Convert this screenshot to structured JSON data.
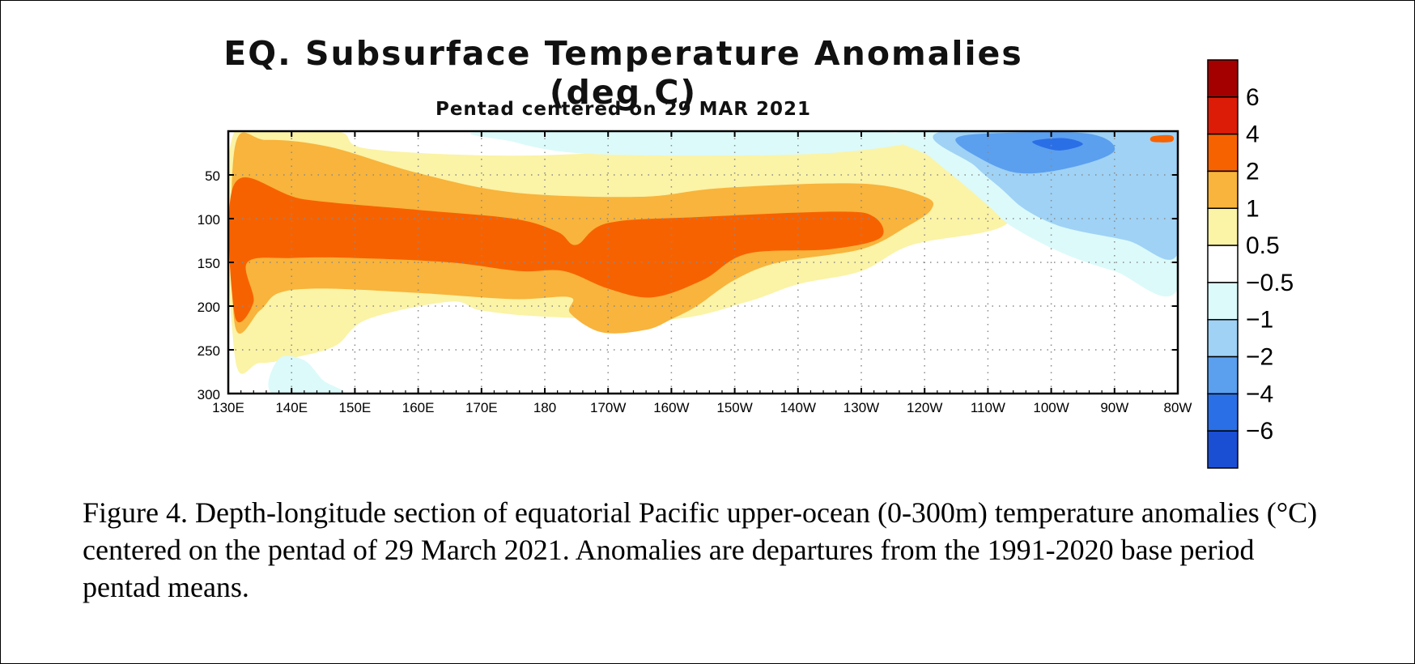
{
  "chart_data": {
    "type": "heatmap",
    "title": "EQ. Subsurface Temperature Anomalies (deg C)",
    "subtitle": "Pentad centered on 29 MAR 2021",
    "x_ticks": [
      "130E",
      "140E",
      "150E",
      "160E",
      "170E",
      "180",
      "170W",
      "160W",
      "150W",
      "140W",
      "130W",
      "120W",
      "110W",
      "100W",
      "90W",
      "80W"
    ],
    "x_range_deg_east": [
      130,
      280
    ],
    "y_ticks": [
      "50",
      "100",
      "150",
      "200",
      "250",
      "300"
    ],
    "y_tick_values": [
      50,
      100,
      150,
      200,
      250,
      300
    ],
    "y_range_m": [
      300,
      0
    ],
    "grid": true,
    "colorbar": {
      "placement": "right",
      "labels": [
        "6",
        "4",
        "2",
        "1",
        "0.5",
        "−0.5",
        "−1",
        "−2",
        "−4",
        "−6"
      ],
      "bins": [
        {
          "range": ">6",
          "color": "#a50000"
        },
        {
          "range": "4 to 6",
          "color": "#dd1c08"
        },
        {
          "range": "2 to 4",
          "color": "#f76200"
        },
        {
          "range": "1 to 2",
          "color": "#f8b43c"
        },
        {
          "range": "0.5 to 1",
          "color": "#fbf3a6"
        },
        {
          "range": "-0.5 to 0.5",
          "color": "#ffffff"
        },
        {
          "range": "-1 to -0.5",
          "color": "#dcfafa"
        },
        {
          "range": "-2 to -1",
          "color": "#9fd2f5"
        },
        {
          "range": "-4 to -2",
          "color": "#5b9fef"
        },
        {
          "range": "-6 to -4",
          "color": "#2b6fe6"
        },
        {
          "range": "<-6",
          "color": "#1a4fd4"
        }
      ]
    },
    "anomaly_features": [
      {
        "level": 0.5,
        "color": "#fbf3a6",
        "points": [
          [
            131,
            0
          ],
          [
            147,
            0
          ],
          [
            152,
            20
          ],
          [
            175,
            28
          ],
          [
            200,
            20
          ],
          [
            225,
            8
          ],
          [
            250,
            10
          ],
          [
            255,
            35
          ],
          [
            256,
            70
          ],
          [
            252,
            110
          ],
          [
            238,
            130
          ],
          [
            230,
            160
          ],
          [
            220,
            175
          ],
          [
            212,
            195
          ],
          [
            200,
            215
          ],
          [
            180,
            212
          ],
          [
            170,
            205
          ],
          [
            165,
            195
          ],
          [
            152,
            215
          ],
          [
            147,
            245
          ],
          [
            141,
            258
          ],
          [
            135,
            265
          ],
          [
            131,
            255
          ]
        ]
      },
      {
        "level": 1,
        "color": "#f8b43c",
        "points": [
          [
            131,
            20
          ],
          [
            136,
            10
          ],
          [
            146,
            18
          ],
          [
            160,
            48
          ],
          [
            175,
            70
          ],
          [
            195,
            75
          ],
          [
            208,
            65
          ],
          [
            230,
            60
          ],
          [
            240,
            75
          ],
          [
            241,
            90
          ],
          [
            237,
            110
          ],
          [
            230,
            135
          ],
          [
            217,
            150
          ],
          [
            210,
            170
          ],
          [
            204,
            200
          ],
          [
            200,
            215
          ],
          [
            196,
            227
          ],
          [
            189,
            230
          ],
          [
            184,
            208
          ],
          [
            184,
            190
          ],
          [
            175,
            192
          ],
          [
            160,
            185
          ],
          [
            145,
            180
          ],
          [
            138,
            185
          ],
          [
            135,
            205
          ],
          [
            131,
            220
          ]
        ]
      },
      {
        "level": 2,
        "color": "#f76200",
        "points": [
          [
            131,
            60
          ],
          [
            142,
            78
          ],
          [
            160,
            90
          ],
          [
            175,
            100
          ],
          [
            182,
            115
          ],
          [
            185,
            130
          ],
          [
            190,
            105
          ],
          [
            205,
            98
          ],
          [
            226,
            92
          ],
          [
            232,
            98
          ],
          [
            233,
            122
          ],
          [
            225,
            135
          ],
          [
            212,
            140
          ],
          [
            205,
            170
          ],
          [
            197,
            190
          ],
          [
            190,
            180
          ],
          [
            183,
            160
          ],
          [
            176,
            160
          ],
          [
            165,
            150
          ],
          [
            150,
            145
          ],
          [
            140,
            145
          ],
          [
            133,
            150
          ],
          [
            134,
            195
          ],
          [
            131,
            210
          ]
        ]
      },
      {
        "level": -0.5,
        "color": "#dcfafa",
        "points": [
          [
            172,
            0
          ],
          [
            230,
            0
          ],
          [
            238,
            12
          ],
          [
            225,
            25
          ],
          [
            205,
            28
          ],
          [
            185,
            25
          ],
          [
            175,
            12
          ]
        ]
      },
      {
        "level": -0.5,
        "color": "#dcfafa",
        "points": [
          [
            137,
            300
          ],
          [
            138,
            260
          ],
          [
            142,
            262
          ],
          [
            145,
            285
          ],
          [
            148,
            300
          ]
        ]
      },
      {
        "level": -0.5,
        "color": "#dcfafa",
        "points": [
          [
            237,
            0
          ],
          [
            280,
            0
          ],
          [
            280,
            180
          ],
          [
            270,
            160
          ],
          [
            262,
            140
          ],
          [
            254,
            110
          ],
          [
            250,
            85
          ],
          [
            246,
            60
          ],
          [
            241,
            30
          ]
        ]
      },
      {
        "level": -1,
        "color": "#9fd2f5",
        "points": [
          [
            243,
            0
          ],
          [
            280,
            0
          ],
          [
            280,
            140
          ],
          [
            272,
            125
          ],
          [
            262,
            110
          ],
          [
            256,
            90
          ],
          [
            252,
            65
          ],
          [
            248,
            40
          ]
        ]
      },
      {
        "level": -2,
        "color": "#5b9fef",
        "points": [
          [
            245,
            8
          ],
          [
            252,
            2
          ],
          [
            266,
            3
          ],
          [
            270,
            22
          ],
          [
            264,
            40
          ],
          [
            255,
            48
          ],
          [
            248,
            28
          ]
        ]
      },
      {
        "level": -4,
        "color": "#2b6fe6",
        "points": [
          [
            257,
            12
          ],
          [
            262,
            8
          ],
          [
            265,
            15
          ],
          [
            261,
            22
          ]
        ]
      },
      {
        "level": 2,
        "color": "#f76200",
        "points": [
          [
            276,
            6
          ],
          [
            279,
            5
          ],
          [
            279,
            12
          ],
          [
            276,
            12
          ]
        ]
      }
    ]
  },
  "caption": "Figure 4. Depth-longitude section of equatorial Pacific upper-ocean (0-300m) temperature anomalies (°C) centered on the pentad of 29 March 2021. Anomalies are departures from the 1991-2020 base period pentad means."
}
